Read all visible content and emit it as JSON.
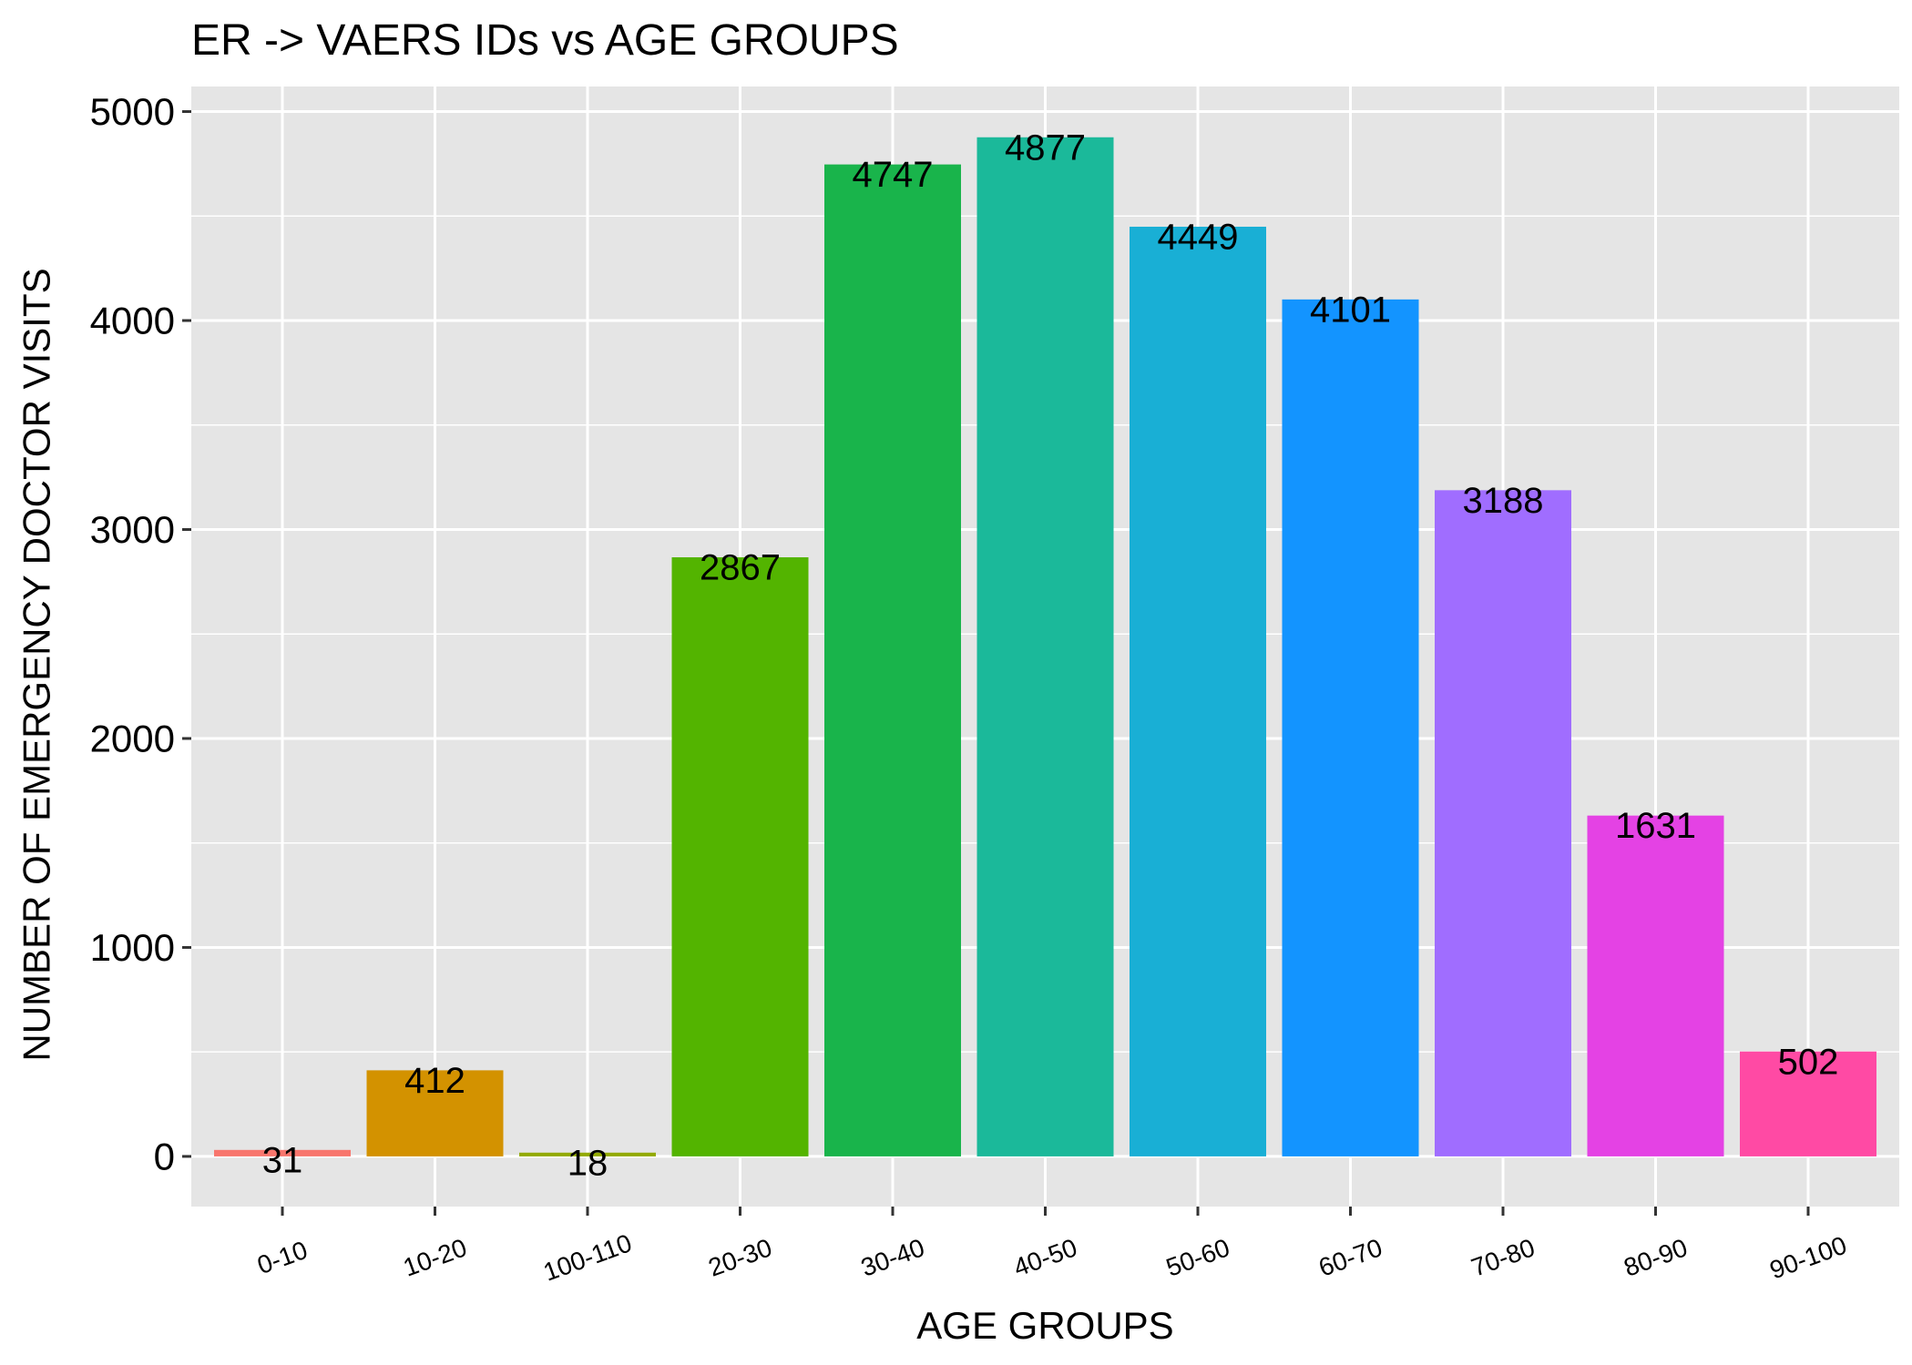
{
  "chart_data": {
    "type": "bar",
    "title": "ER -> VAERS IDs vs AGE GROUPS",
    "xlabel": "AGE GROUPS",
    "ylabel": "NUMBER OF EMERGENCY DOCTOR VISITS",
    "categories": [
      "0-10",
      "10-20",
      "100-110",
      "20-30",
      "30-40",
      "40-50",
      "50-60",
      "60-70",
      "70-80",
      "80-90",
      "90-100"
    ],
    "values": [
      31,
      412,
      18,
      2867,
      4747,
      4877,
      4449,
      4101,
      3188,
      1631,
      502
    ],
    "data_labels": [
      "31",
      "412",
      "18",
      "2867",
      "4747",
      "4877",
      "4449",
      "4101",
      "3188",
      "1631",
      "502"
    ],
    "colors": [
      "#F8766D",
      "#D39200",
      "#93AA00",
      "#53B400",
      "#19B44B",
      "#1BB99A",
      "#19AFD5",
      "#1394FF",
      "#A06DFF",
      "#E442E4",
      "#FF4AA4"
    ],
    "ylim": [
      -240,
      5120
    ],
    "yticks": [
      0,
      1000,
      2000,
      3000,
      4000,
      5000
    ],
    "ytick_labels": [
      "0",
      "1000",
      "2000",
      "3000",
      "4000",
      "5000"
    ],
    "grid": true,
    "panel_background": "#E5E5E5",
    "grid_color": "#FFFFFF",
    "legend": "none"
  }
}
